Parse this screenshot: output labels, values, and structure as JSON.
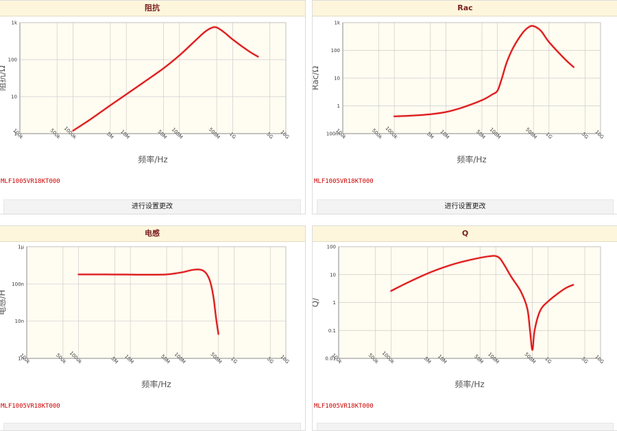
{
  "colors": {
    "curve": "#dd1111",
    "plot_bg": "#fffcf1",
    "grid": "#cccccc",
    "header_bg": "#fdf6dc",
    "title": "#7a1f1f",
    "part_number": "#cc0000"
  },
  "x_ticks": [
    "100k",
    "500k",
    "1000k",
    "5M",
    "10M",
    "50M",
    "100M",
    "500M",
    "1G",
    "5G",
    "10G"
  ],
  "panels": [
    {
      "title": "阻抗",
      "part_number": "MLF1005VR18KT000",
      "button_label": "进行设置更改",
      "chart_data": {
        "type": "line",
        "title": "阻抗",
        "xlabel": "频率/Hz",
        "ylabel": "阻抗/Ω",
        "xscale": "log",
        "yscale": "log",
        "xlim": [
          100000,
          10000000000
        ],
        "ylim": [
          1,
          1000
        ],
        "y_ticks": [
          "1",
          "10",
          "100",
          "1k"
        ],
        "grid": true,
        "series": [
          {
            "x": [
              1000000,
              2000000,
              5000000,
              10000000,
              20000000,
              50000000,
              100000000,
              200000000,
              300000000,
              400000000,
              500000000,
              700000000,
              1000000000,
              2000000000,
              3000000000
            ],
            "values": [
              1.2,
              2.3,
              5.8,
              11.5,
              23,
              58,
              130,
              330,
              560,
              720,
              740,
              540,
              350,
              170,
              120
            ]
          }
        ]
      }
    },
    {
      "title": "Rac",
      "part_number": "MLF1005VR18KT000",
      "button_label": "进行设置更改",
      "chart_data": {
        "type": "line",
        "title": "Rac",
        "xlabel": "频率/Hz",
        "ylabel": "Rac/Ω",
        "xscale": "log",
        "yscale": "log",
        "xlim": [
          100000,
          10000000000
        ],
        "ylim": [
          0.1,
          1000
        ],
        "y_ticks": [
          "100m",
          "1",
          "10",
          "100",
          "1k"
        ],
        "grid": true,
        "series": [
          {
            "x": [
              1000000,
              2000000,
              5000000,
              10000000,
              20000000,
              50000000,
              80000000,
              100000000,
              120000000,
              150000000,
              200000000,
              300000000,
              400000000,
              500000000,
              700000000,
              1000000000,
              2000000000,
              3000000000
            ],
            "values": [
              0.42,
              0.44,
              0.5,
              0.6,
              0.85,
              1.6,
              2.6,
              3.5,
              9,
              35,
              120,
              400,
              680,
              750,
              500,
              200,
              50,
              25
            ]
          }
        ]
      }
    },
    {
      "title": "电感",
      "part_number": "MLF1005VR18KT000",
      "button_label": "",
      "chart_data": {
        "type": "line",
        "title": "电感",
        "xlabel": "频率/Hz",
        "ylabel": "电感/H",
        "xscale": "log",
        "yscale": "log",
        "xlim": [
          100000,
          10000000000
        ],
        "ylim": [
          1e-09,
          1e-06
        ],
        "y_ticks": [
          "1n",
          "10n",
          "100n",
          "1μ"
        ],
        "grid": true,
        "series": [
          {
            "x": [
              1000000,
              2000000,
              5000000,
              10000000,
              20000000,
              50000000,
              100000000,
              150000000,
              200000000,
              250000000,
              300000000,
              350000000,
              400000000,
              450000000,
              500000000
            ],
            "values": [
              1.8e-07,
              1.8e-07,
              1.79e-07,
              1.78e-07,
              1.77e-07,
              1.8e-07,
              2.05e-07,
              2.35e-07,
              2.45e-07,
              2.3e-07,
              1.8e-07,
              1.1e-07,
              4.5e-08,
              1.2e-08,
              4.5e-09
            ]
          }
        ]
      }
    },
    {
      "title": "Q",
      "part_number": "MLF1005VR18KT000",
      "button_label": "",
      "chart_data": {
        "type": "line",
        "title": "Q",
        "xlabel": "频率/Hz",
        "ylabel": "Q/",
        "xscale": "log",
        "yscale": "log",
        "xlim": [
          100000,
          10000000000
        ],
        "ylim": [
          0.01,
          100
        ],
        "y_ticks": [
          "0.01",
          "0.1",
          "1",
          "10",
          "100"
        ],
        "grid": true,
        "series": [
          {
            "x": [
              1000000,
              2000000,
              5000000,
              10000000,
              20000000,
              50000000,
              80000000,
              100000000,
              120000000,
              150000000,
              200000000,
              300000000,
              400000000,
              450000000,
              500000000,
              550000000,
              700000000,
              1000000000,
              2000000000,
              3000000000
            ],
            "values": [
              2.6,
              5,
              11,
              18,
              27,
              40,
              46,
              46,
              38,
              20,
              8,
              2.5,
              0.6,
              0.1,
              0.02,
              0.1,
              0.5,
              1.1,
              3,
              4.3
            ]
          }
        ]
      }
    }
  ]
}
